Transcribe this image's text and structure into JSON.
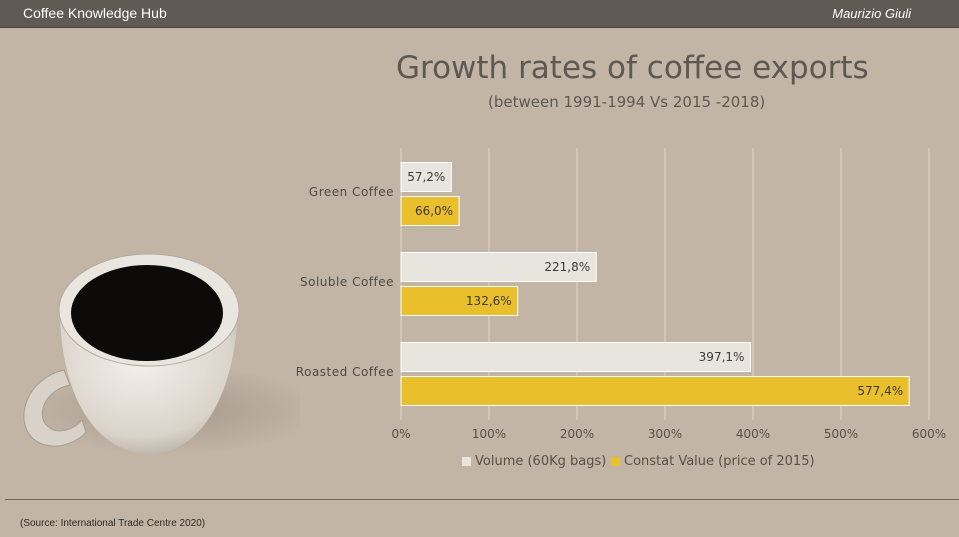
{
  "header": {
    "hub_title": "Coffee Knowledge Hub",
    "author": "Maurizio Giuli"
  },
  "footer": {
    "source": "(Source:  International Trade Centre 2020)"
  },
  "chart_data": {
    "type": "bar",
    "orientation": "horizontal",
    "title": "Growth rates of coffee exports",
    "subtitle": "(between 1991-1994 Vs 2015  -2018)",
    "categories": [
      "Green Coffee",
      "Soluble Coffee",
      "Roasted Coffee"
    ],
    "series": [
      {
        "name": "Volume (60Kg bags)",
        "values": [
          57.2,
          221.8,
          397.1
        ],
        "labels": [
          "57,2%",
          "221,8%",
          "397,1%"
        ],
        "color": "#e8e4de"
      },
      {
        "name": "Constat Value (price of 2015)",
        "values": [
          66.0,
          132.6,
          577.4
        ],
        "labels": [
          "66,0%",
          "132,6%",
          "577,4%"
        ],
        "color": "#eabf2c"
      }
    ],
    "xlim": [
      0,
      600
    ],
    "x_ticks": [
      "0%",
      "100%",
      "200%",
      "300%",
      "400%",
      "500%",
      "600%"
    ],
    "grid": true,
    "legend_position": "bottom"
  }
}
